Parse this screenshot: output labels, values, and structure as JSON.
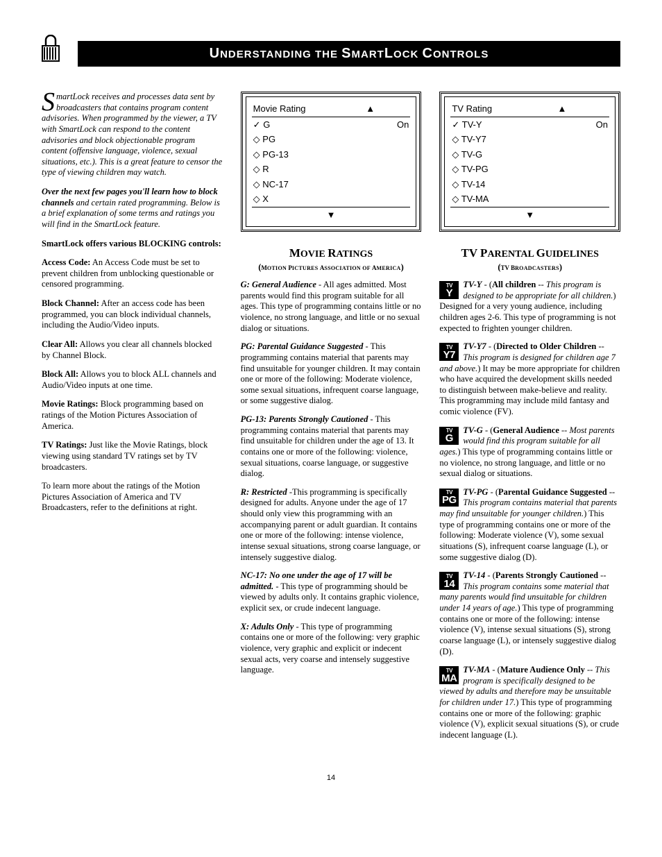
{
  "header": {
    "title_html": "<span class='up'>U</span><span class='lo'>NDERSTANDING THE </span><span class='up'>S</span><span class='lo'>MART</span><span class='up'>L</span><span class='lo'>OCK </span><span class='up'>C</span><span class='lo'>ONTROLS</span>"
  },
  "colA": {
    "dropcap": "S",
    "intro_rest": "martLock receives and processes data sent by broadcasters that contains program content advisories. When programmed by the viewer, a TV with SmartLock can respond to the content advisories and block objectionable program content (offensive language, violence, sexual situations, etc.). This is a great feature to censor the type of viewing children may watch.",
    "p2_bold": "Over the next few pages you'll learn how to block channels",
    "p2_rest": " and certain rated programming. Below is a brief explanation of some terms and ratings you will find in the SmartLock feature.",
    "p3": "SmartLock offers various BLOCKING controls:",
    "defs": [
      {
        "term": "Access Code:",
        "text": " An Access Code must be set to prevent children from unblocking questionable or censored programming."
      },
      {
        "term": "Block Channel:",
        "text": " After an access code has been programmed, you can block individual channels, including the Audio/Video inputs."
      },
      {
        "term": "Clear All:",
        "text": " Allows you clear all channels blocked by Channel Block."
      },
      {
        "term": "Block All:",
        "text": " Allows you to block ALL channels and Audio/Video inputs at one time."
      },
      {
        "term": "Movie Ratings:",
        "text": " Block programming based on ratings of the Motion Pictures Association of America."
      },
      {
        "term": "TV Ratings:",
        "text": " Just like the Movie Ratings, block viewing using standard TV ratings set by TV broadcasters."
      }
    ],
    "p_last": "To learn more about the ratings of the Motion Pictures Association of America and TV Broadcasters, refer to the definitions at right."
  },
  "colB": {
    "menu": {
      "title": "Movie Rating",
      "status": "On",
      "items": [
        {
          "mark": "check",
          "label": "G"
        },
        {
          "mark": "diamond",
          "label": "PG"
        },
        {
          "mark": "diamond",
          "label": "PG-13"
        },
        {
          "mark": "diamond",
          "label": "R"
        },
        {
          "mark": "diamond",
          "label": "NC-17"
        },
        {
          "mark": "diamond",
          "label": "X"
        }
      ]
    },
    "heading_html": "<span class='up'>M</span><span class='lo'>OVIE </span><span class='up'>R</span><span class='lo'>ATINGS</span>",
    "sub_html": "(<span class='up'>M</span><span class='lo'>OTION </span><span class='up'>P</span><span class='lo'>ICTURES </span><span class='up'>A</span><span class='lo'>SSOCIATION OF </span><span class='up'>A</span><span class='lo'>MERICA</span>)",
    "ratings": [
      {
        "key": "G: General Audience",
        "text": " - All ages admitted. Most parents would find this program suitable for all ages. This type of programming contains little or no violence, no strong language, and little or no sexual dialog or situations."
      },
      {
        "key": "PG: Parental Guidance Suggested",
        "text": " - This programming contains material that parents may find unsuitable for younger children. It may contain one or more of the following: Moderate violence, some sexual situations, infrequent coarse language, or some suggestive dialog."
      },
      {
        "key": "PG-13: Parents Strongly Cautioned",
        "text": " - This programming contains material that parents may find unsuitable for children under the age of 13. It contains one or more of the following: violence, sexual situations, coarse language, or suggestive dialog."
      },
      {
        "key": "R: Restricted",
        "text": " -This programming is specifically designed for adults. Anyone under the age of 17 should only view this programming with an accompanying parent or adult guardian. It contains one or more of the following: intense violence, intense sexual situations, strong coarse language, or intensely suggestive dialog."
      },
      {
        "key": "NC-17: No one under the age of 17 will be admitted.",
        "text": " - This type of programming should be viewed by adults only. It contains graphic violence, explicit sex, or crude indecent language."
      },
      {
        "key": "X: Adults Only",
        "text": " - This type of programming contains one or more of the following: very graphic violence, very graphic and explicit or indecent sexual acts, very coarse and intensely suggestive language."
      }
    ]
  },
  "colC": {
    "menu": {
      "title": "TV Rating",
      "status": "On",
      "items": [
        {
          "mark": "check",
          "label": "TV-Y"
        },
        {
          "mark": "diamond",
          "label": "TV-Y7"
        },
        {
          "mark": "diamond",
          "label": "TV-G"
        },
        {
          "mark": "diamond",
          "label": "TV-PG"
        },
        {
          "mark": "diamond",
          "label": "TV-14"
        },
        {
          "mark": "diamond",
          "label": "TV-MA"
        }
      ]
    },
    "heading_html": "<span class='up'>TV P</span><span class='lo'>ARENTAL </span><span class='up'>G</span><span class='lo'>UIDELINES</span>",
    "sub_html": "(<span class='up'>TV B</span><span class='lo'>ROADCASTERS</span>)",
    "ratings": [
      {
        "icon": "Y",
        "key": "TV-Y",
        "tag": "All children",
        "tag_it": "This program is designed to be appropriate for all children.",
        "text": " Designed for a very young audience, including children ages 2-6. This type of programming is not expected to frighten younger children."
      },
      {
        "icon": "Y7",
        "key": "TV-Y7",
        "tag": "Directed to Older Children",
        "tag_it": "This program is designed for children age 7 and above.",
        "text": " It may be more appropriate for children who have acquired the development skills needed to distinguish between make-believe and reality. This programming may include mild fantasy and comic violence (FV)."
      },
      {
        "icon": "G",
        "key": "TV-G",
        "tag": "General Audience",
        "tag_it": "Most parents would find this program suitable for all ages.",
        "text": " This type of programming contains little or no violence, no strong language, and little or no sexual dialog or situations."
      },
      {
        "icon": "PG",
        "key": "TV-PG",
        "tag": "Parental Guidance Suggested",
        "tag_it": "This program contains material that parents may find unsuitable for younger children.",
        "text": " This type of programming contains one or more of the following: Moderate violence (V), some sexual situations (S), infrequent coarse language (L), or some suggestive dialog (D)."
      },
      {
        "icon": "14",
        "key": "TV-14",
        "tag": "Parents Strongly Cautioned",
        "tag_it": "This program contains some material that many parents would find unsuitable for children under 14 years of age.",
        "text": " This type of programming contains one or more of the following: intense violence (V), intense sexual situations (S), strong coarse language (L), or intensely suggestive dialog (D)."
      },
      {
        "icon": "MA",
        "key": "TV-MA",
        "tag": "Mature Audience Only",
        "tag_it": "This program is specifically designed to be viewed by adults and therefore may be unsuitable for children under 17.",
        "text": " This type of programming contains one or more of the following: graphic violence (V), explicit sexual situations (S), or crude indecent language (L)."
      }
    ]
  },
  "page_num": "14"
}
